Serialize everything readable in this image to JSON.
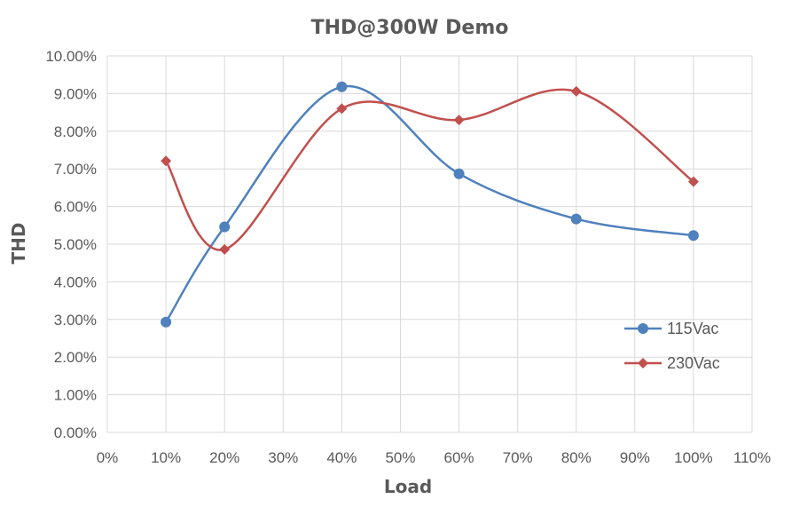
{
  "chart_data": {
    "type": "line",
    "title": "THD@300W Demo",
    "xlabel": "Load",
    "ylabel": "THD",
    "xlim": [
      0,
      110
    ],
    "ylim": [
      0,
      10
    ],
    "x_ticks": [
      "0%",
      "10%",
      "20%",
      "30%",
      "40%",
      "50%",
      "60%",
      "70%",
      "80%",
      "90%",
      "100%",
      "110%"
    ],
    "y_ticks": [
      "0.00%",
      "1.00%",
      "2.00%",
      "3.00%",
      "4.00%",
      "5.00%",
      "6.00%",
      "7.00%",
      "8.00%",
      "9.00%",
      "10.00%"
    ],
    "grid": true,
    "smooth": true,
    "legend_position": "right",
    "series": [
      {
        "name": "115Vac",
        "color": "#4f81bd",
        "marker": "circle",
        "x": [
          10,
          20,
          40,
          60,
          80,
          100
        ],
        "values": [
          2.93,
          5.46,
          9.18,
          6.87,
          5.67,
          5.23
        ]
      },
      {
        "name": "230Vac",
        "color": "#c0504d",
        "marker": "diamond",
        "x": [
          10,
          20,
          40,
          60,
          80,
          100
        ],
        "values": [
          7.21,
          4.86,
          8.6,
          8.3,
          9.06,
          6.66
        ]
      }
    ]
  }
}
